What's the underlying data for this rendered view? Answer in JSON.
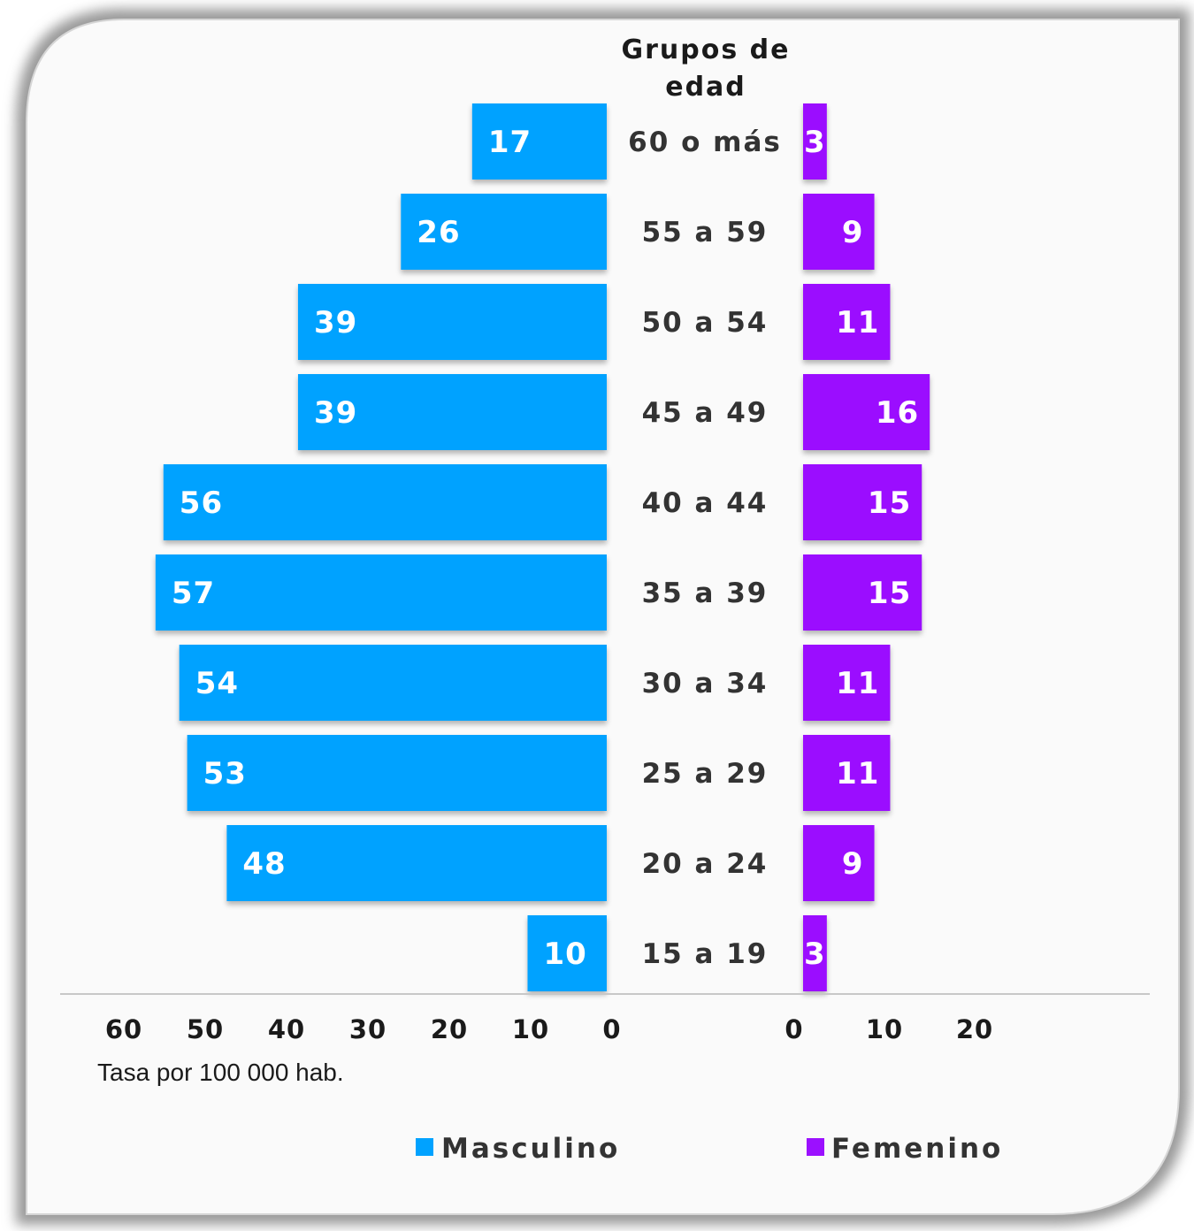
{
  "chart_data": {
    "type": "bar",
    "orientation": "horizontal-pyramid",
    "title": "Grupos de edad",
    "xlabel": "Tasa por 100 000 hab.",
    "categories": [
      "60 o más",
      "55 a 59",
      "50 a 54",
      "45 a 49",
      "40 a 44",
      "35 a 39",
      "30 a 34",
      "25 a 29",
      "20 a 24",
      "15 a 19"
    ],
    "series": [
      {
        "name": "Masculino",
        "color": "#00a2ff",
        "side": "left",
        "values": [
          17,
          26,
          39,
          39,
          56,
          57,
          54,
          53,
          48,
          10
        ]
      },
      {
        "name": "Femenino",
        "color": "#9b10ff",
        "side": "right",
        "values": [
          3,
          9,
          11,
          16,
          15,
          15,
          11,
          11,
          9,
          3
        ]
      }
    ],
    "left_axis": {
      "ticks": [
        "60",
        "50",
        "40",
        "30",
        "20",
        "10",
        "0"
      ],
      "range": [
        0,
        60
      ]
    },
    "right_axis": {
      "ticks": [
        "0",
        "10",
        "20"
      ],
      "range": [
        0,
        20
      ]
    },
    "legend_position": "bottom",
    "grid": false
  }
}
